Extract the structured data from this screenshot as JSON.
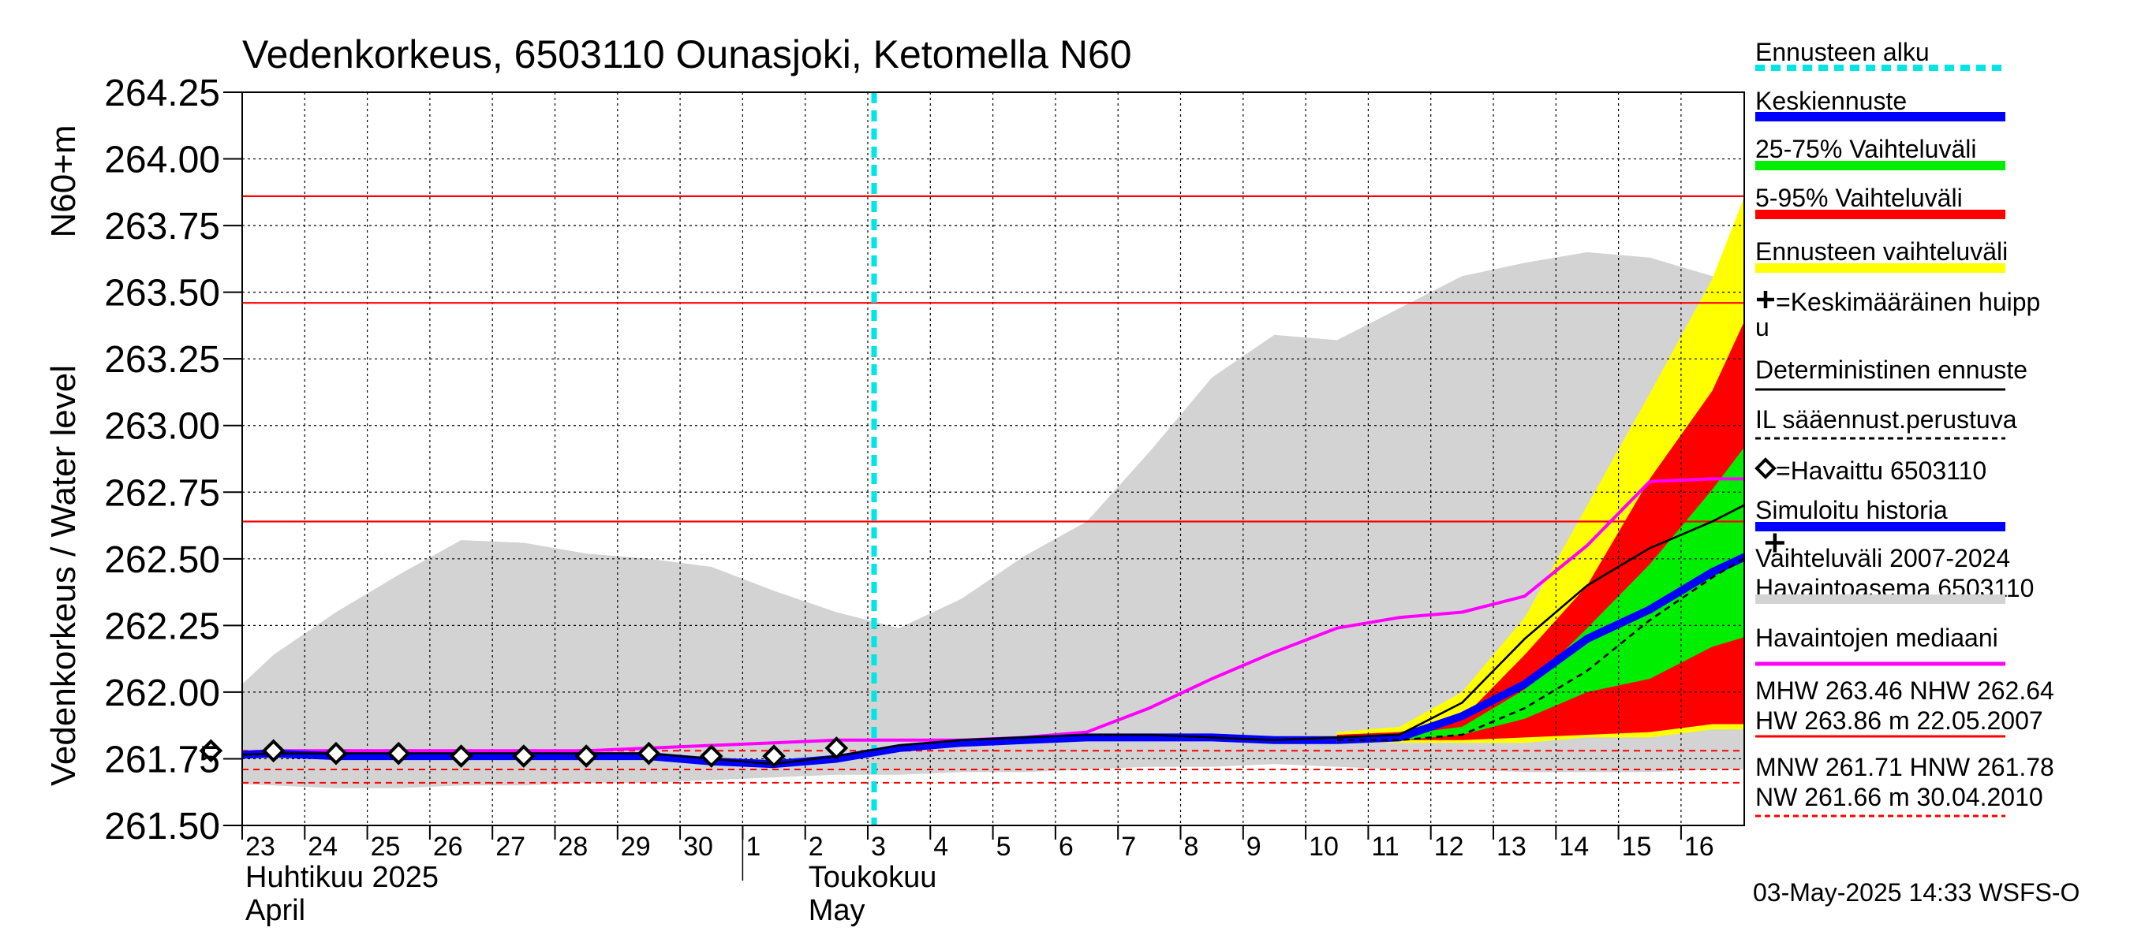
{
  "chart_data": {
    "type": "area",
    "title": "Vedenkorkeus, 6503110 Ounasjoki, Ketomella N60",
    "ylabel": "Vedenkorkeus / Water level",
    "yunit": "N60+m",
    "ylim": [
      261.5,
      264.25
    ],
    "yticks": [
      "261.50",
      "261.75",
      "262.00",
      "262.25",
      "262.50",
      "262.75",
      "263.00",
      "263.25",
      "263.50",
      "263.75",
      "264.00",
      "264.25"
    ],
    "x_start": "2025-04-22",
    "xticks": [
      "23",
      "24",
      "25",
      "26",
      "27",
      "28",
      "29",
      "30",
      "1",
      "2",
      "3",
      "4",
      "5",
      "6",
      "7",
      "8",
      "9",
      "10",
      "11",
      "12",
      "13",
      "14",
      "15",
      "16"
    ],
    "month_labels": [
      {
        "fi": "Huhtikuu  2025",
        "en": "April"
      },
      {
        "fi": "Toukokuu",
        "en": "May"
      }
    ],
    "grid": true,
    "legend_position": "right",
    "forecast_start_day": 11,
    "reference_lines": [
      {
        "label": "MHW",
        "value": 263.46,
        "style": "solid"
      },
      {
        "label": "NHW",
        "value": 262.64,
        "style": "solid"
      },
      {
        "label": "HW",
        "value": 263.86,
        "style": "solid"
      },
      {
        "label": "MNW",
        "value": 261.71,
        "style": "dashed"
      },
      {
        "label": "HNW",
        "value": 261.78,
        "style": "dashed"
      },
      {
        "label": "NW",
        "value": 261.66,
        "style": "dashed"
      }
    ],
    "colors": {
      "forecast_start": "#00e5e5",
      "mean_forecast": "#0000ff",
      "range_25_75": "#00ee00",
      "range_5_95": "#ff0000",
      "forecast_range": "#ffff00",
      "deterministic": "#000000",
      "il_forecast": "#000000",
      "simulated_history": "#0000ff",
      "history_range": "#d3d3d3",
      "observed_median": "#ff00ff",
      "reference": "#ff0000"
    },
    "series": [
      {
        "name": "Vaihteluväli 2007-2024",
        "kind": "band",
        "x": [
          0,
          1,
          2,
          3,
          4,
          5,
          6,
          7,
          8,
          9,
          10,
          11,
          12,
          13,
          14,
          15,
          16,
          17,
          18,
          19,
          20,
          21,
          22,
          23,
          24,
          25
        ],
        "upper": [
          261.92,
          262.14,
          262.3,
          262.44,
          262.57,
          262.56,
          262.52,
          262.5,
          262.47,
          262.38,
          262.3,
          262.24,
          262.35,
          262.51,
          262.64,
          262.9,
          263.18,
          263.34,
          263.32,
          263.44,
          263.56,
          263.61,
          263.65,
          263.63,
          263.56,
          263.53
        ],
        "lower": [
          261.66,
          261.65,
          261.64,
          261.64,
          261.65,
          261.65,
          261.66,
          261.66,
          261.67,
          261.68,
          261.69,
          261.69,
          261.7,
          261.7,
          261.71,
          261.72,
          261.72,
          261.73,
          261.72,
          261.71,
          261.71,
          261.7,
          261.7,
          261.7,
          261.71,
          261.71
        ]
      },
      {
        "name": "Ennusteen vaihteluväli",
        "kind": "band",
        "x": [
          18,
          19,
          20,
          21,
          22,
          23,
          24,
          25
        ],
        "upper": [
          261.85,
          261.87,
          262.0,
          262.28,
          262.7,
          263.12,
          263.55,
          264.15
        ],
        "lower": [
          261.82,
          261.81,
          261.81,
          261.81,
          261.83,
          261.83,
          261.86,
          261.86
        ]
      },
      {
        "name": "5-95% Vaihteluväli",
        "kind": "band",
        "x": [
          18,
          19,
          20,
          21,
          22,
          23,
          24,
          25
        ],
        "upper": [
          261.84,
          261.85,
          261.9,
          262.14,
          262.4,
          262.8,
          263.13,
          263.64
        ],
        "lower": [
          261.82,
          261.82,
          261.82,
          261.83,
          261.84,
          261.85,
          261.88,
          261.88
        ]
      },
      {
        "name": "25-75% Vaihteluväli",
        "kind": "band",
        "x": [
          18,
          19,
          20,
          21,
          22,
          23,
          24,
          25
        ],
        "upper": [
          261.83,
          261.84,
          261.87,
          262.01,
          262.24,
          262.48,
          262.76,
          263.07
        ],
        "lower": [
          261.82,
          261.82,
          261.84,
          261.9,
          262.0,
          262.05,
          262.17,
          262.24
        ]
      },
      {
        "name": "Havaintojen mediaani",
        "kind": "line",
        "x": [
          0,
          1,
          2,
          3,
          4,
          5,
          6,
          7,
          8,
          9,
          10,
          11,
          12,
          13,
          14,
          15,
          16,
          17,
          18,
          19,
          20,
          21,
          22,
          23,
          24,
          25
        ],
        "y": [
          261.77,
          261.78,
          261.78,
          261.78,
          261.78,
          261.78,
          261.78,
          261.79,
          261.8,
          261.81,
          261.82,
          261.82,
          261.82,
          261.83,
          261.85,
          261.94,
          262.05,
          262.15,
          262.24,
          262.28,
          262.3,
          262.36,
          262.55,
          262.79,
          262.8,
          262.8
        ]
      },
      {
        "name": "Simuloitu historia",
        "kind": "line",
        "x": [
          0,
          1,
          2,
          3,
          4,
          5,
          6,
          7,
          8,
          9,
          10,
          11,
          12,
          13,
          14,
          15,
          16,
          17,
          18
        ],
        "y": [
          261.76,
          261.77,
          261.76,
          261.76,
          261.76,
          261.76,
          261.76,
          261.76,
          261.74,
          261.73,
          261.75,
          261.79,
          261.81,
          261.82,
          261.83,
          261.83,
          261.83,
          261.82,
          261.82
        ]
      },
      {
        "name": "Keskiennuste",
        "kind": "line",
        "x": [
          18,
          19,
          20,
          21,
          22,
          23,
          24,
          25
        ],
        "y": [
          261.82,
          261.83,
          261.91,
          262.03,
          262.2,
          262.31,
          262.45,
          262.56
        ]
      },
      {
        "name": "IL sääennust.perustuva",
        "kind": "dashed",
        "x": [
          18,
          19,
          20,
          21,
          22,
          23,
          24,
          25
        ],
        "y": [
          261.82,
          261.82,
          261.84,
          261.94,
          262.08,
          262.27,
          262.43,
          262.57
        ]
      },
      {
        "name": "Deterministinen ennuste",
        "kind": "line",
        "x": [
          0,
          1,
          2,
          3,
          4,
          5,
          6,
          7,
          8,
          9,
          10,
          11,
          12,
          13,
          14,
          15,
          16,
          17,
          18,
          19,
          20,
          21,
          22,
          23,
          24,
          25
        ],
        "y": [
          261.76,
          261.77,
          261.77,
          261.77,
          261.77,
          261.77,
          261.77,
          261.77,
          261.75,
          261.73,
          261.76,
          261.8,
          261.82,
          261.83,
          261.84,
          261.84,
          261.83,
          261.82,
          261.83,
          261.84,
          261.96,
          262.2,
          262.4,
          262.54,
          262.64,
          262.76
        ]
      },
      {
        "name": "Havaittu 6503110",
        "kind": "markers",
        "x": [
          0,
          1,
          2,
          3,
          4,
          5,
          6,
          7,
          8,
          9,
          10
        ],
        "y": [
          261.78,
          261.78,
          261.77,
          261.77,
          261.76,
          261.76,
          261.76,
          261.77,
          261.76,
          261.76,
          261.79
        ]
      },
      {
        "name": "Keskimääräinen huippu",
        "kind": "peak",
        "x": [
          25
        ],
        "y": [
          262.56
        ]
      }
    ],
    "legend": [
      {
        "label": "Ennusteen alku",
        "key": "forecast_start",
        "style": "dotted"
      },
      {
        "label": "Keskiennuste",
        "key": "mean_forecast",
        "style": "thick"
      },
      {
        "label": "25-75% Vaihteluväli",
        "key": "range_25_75",
        "style": "thick"
      },
      {
        "label": "5-95% Vaihteluväli",
        "key": "range_5_95",
        "style": "thick"
      },
      {
        "label": "Ennusteen vaihteluväli",
        "key": "forecast_range",
        "style": "thick"
      },
      {
        "label": "=Keskimääräinen huipp",
        "label2": "u",
        "key": "deterministic",
        "style": "none",
        "marker": "plus"
      },
      {
        "label": "Deterministinen ennuste",
        "key": "deterministic",
        "style": "thin"
      },
      {
        "label": "IL sääennust.perustuva",
        "key": "il_forecast",
        "style": "dashed"
      },
      {
        "label": "=Havaittu 6503110",
        "key": "deterministic",
        "style": "none",
        "marker": "diamond"
      },
      {
        "label": "Simuloitu historia",
        "key": "simulated_history",
        "style": "thick"
      },
      {
        "label": "Vaihteluväli 2007-2024",
        "label2": " Havaintoasema 6503110",
        "key": "history_range",
        "style": "thick"
      },
      {
        "label": "Havaintojen mediaani",
        "key": "observed_median",
        "style": "medium"
      },
      {
        "label": "MHW 263.46 NHW 262.64",
        "label2": "HW 263.86 m 22.05.2007",
        "key": "reference",
        "style": "thin"
      },
      {
        "label": "MNW 261.71 HNW 261.78",
        "label2": "NW 261.66 m 30.04.2010",
        "key": "reference",
        "style": "dashed"
      }
    ],
    "footer": "03-May-2025 14:33 WSFS-O"
  }
}
